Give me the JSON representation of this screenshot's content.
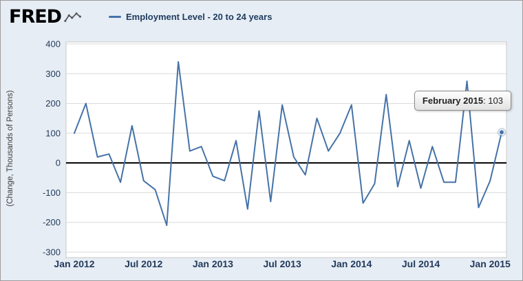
{
  "header": {
    "logo_text": "FRED",
    "legend": {
      "series_label": "Employment Level - 20 to 24 years"
    }
  },
  "tooltip": {
    "title": "February 2015",
    "value_text": ": 103"
  },
  "colors": {
    "background": "#e6edf4",
    "plot_background": "#ffffff",
    "line": "#4572a7",
    "grid": "#d9d9d9",
    "zero_line": "#000000",
    "axis_text": "#233a5c",
    "legend_text": "#1f3a5f"
  },
  "chart_data": {
    "type": "line",
    "title": "",
    "xlabel": "",
    "ylabel": "(Change, Thousands of Persons)",
    "ylim": [
      -300,
      400
    ],
    "grid": true,
    "zero_line": true,
    "legend_position": "top",
    "y_ticks": [
      400,
      300,
      200,
      100,
      0,
      -100,
      -200,
      -300
    ],
    "x_tick_labels": [
      "Jan 2012",
      "Jul 2012",
      "Jan 2013",
      "Jul 2013",
      "Jan 2014",
      "Jul 2014",
      "Jan 2015"
    ],
    "x_tick_indices": [
      0,
      6,
      12,
      18,
      24,
      30,
      36
    ],
    "x": [
      "Jan 2012",
      "Feb 2012",
      "Mar 2012",
      "Apr 2012",
      "May 2012",
      "Jun 2012",
      "Jul 2012",
      "Aug 2012",
      "Sep 2012",
      "Oct 2012",
      "Nov 2012",
      "Dec 2012",
      "Jan 2013",
      "Feb 2013",
      "Mar 2013",
      "Apr 2013",
      "May 2013",
      "Jun 2013",
      "Jul 2013",
      "Aug 2013",
      "Sep 2013",
      "Oct 2013",
      "Nov 2013",
      "Dec 2013",
      "Jan 2014",
      "Feb 2014",
      "Mar 2014",
      "Apr 2014",
      "May 2014",
      "Jun 2014",
      "Jul 2014",
      "Aug 2014",
      "Sep 2014",
      "Oct 2014",
      "Nov 2014",
      "Dec 2014",
      "Jan 2015",
      "Feb 2015"
    ],
    "series": [
      {
        "name": "Employment Level - 20 to 24 years",
        "color": "#4572a7",
        "values": [
          100,
          200,
          20,
          30,
          -65,
          125,
          -60,
          -90,
          -210,
          340,
          40,
          55,
          -45,
          -60,
          75,
          -155,
          175,
          -130,
          195,
          20,
          -40,
          150,
          40,
          100,
          195,
          -135,
          -70,
          230,
          -80,
          75,
          -85,
          55,
          -65,
          -65,
          275,
          -150,
          -60,
          103
        ]
      }
    ],
    "last_point": {
      "label": "February 2015",
      "value": 103
    }
  }
}
